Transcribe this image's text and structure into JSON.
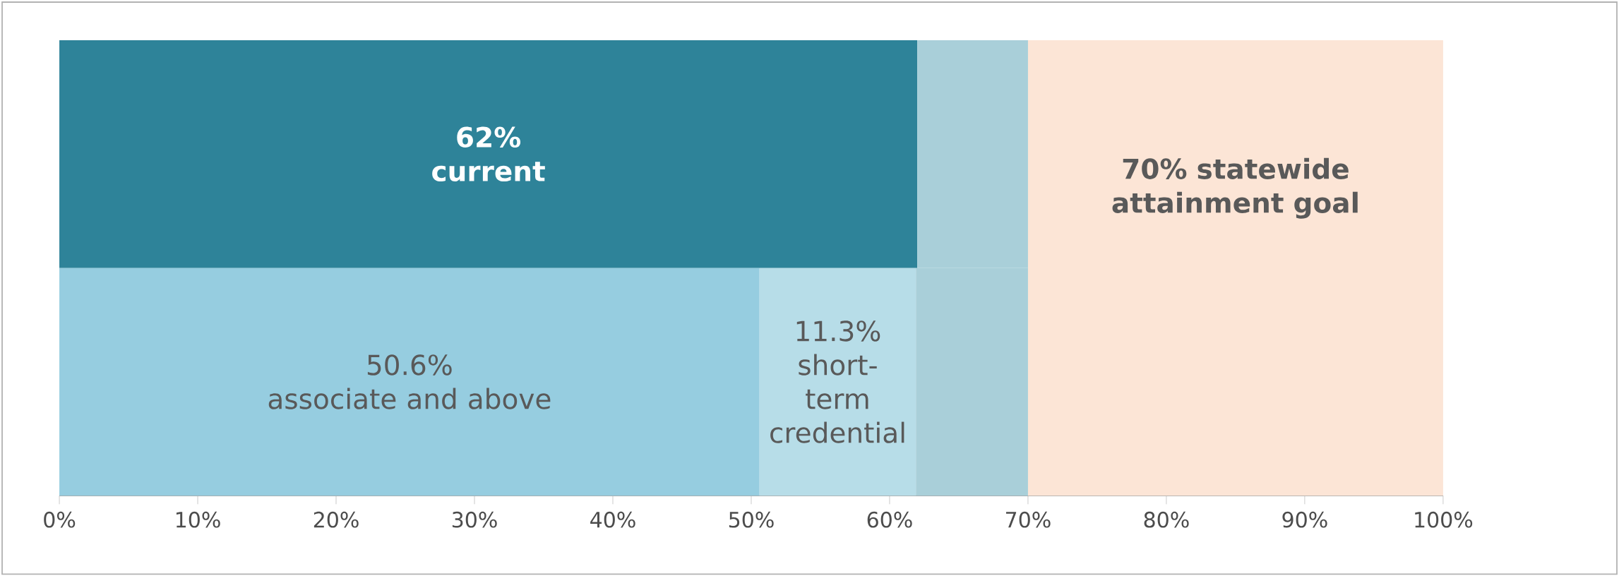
{
  "chart_data": {
    "type": "bar",
    "orientation": "horizontal",
    "stacked": true,
    "categories": [
      null,
      null
    ],
    "series": [
      {
        "name": "current",
        "color": "#2e8399",
        "values": [
          62,
          null
        ],
        "value_labels": [
          "62%",
          null
        ]
      },
      {
        "name": "associate and above",
        "color": "#96cde0",
        "values": [
          null,
          50.6
        ],
        "value_labels": [
          null,
          "50.6%"
        ]
      },
      {
        "name": "short-term credential",
        "color": "#b7dde8",
        "values": [
          null,
          11.3
        ],
        "value_labels": [
          null,
          "11.3%"
        ]
      },
      {
        "color": "#a9cfd9",
        "values": [
          8,
          8.1
        ]
      }
    ],
    "bands": [
      {
        "axis": "x",
        "from": 70,
        "to": 100,
        "color": "#fce5d6",
        "label": "70% statewide attainment goal"
      }
    ],
    "xlim": [
      0,
      100
    ],
    "xticks": [
      {
        "value": 0,
        "label": "0%"
      },
      {
        "value": 10,
        "label": "10%"
      },
      {
        "value": 20,
        "label": "20%"
      },
      {
        "value": 30,
        "label": "30%"
      },
      {
        "value": 40,
        "label": "40%"
      },
      {
        "value": 50,
        "label": "50%"
      },
      {
        "value": 60,
        "label": "60%"
      },
      {
        "value": 70,
        "label": "70%"
      },
      {
        "value": 80,
        "label": "80%"
      },
      {
        "value": 90,
        "label": "90%"
      },
      {
        "value": 100,
        "label": "100%"
      }
    ],
    "legend": false
  }
}
